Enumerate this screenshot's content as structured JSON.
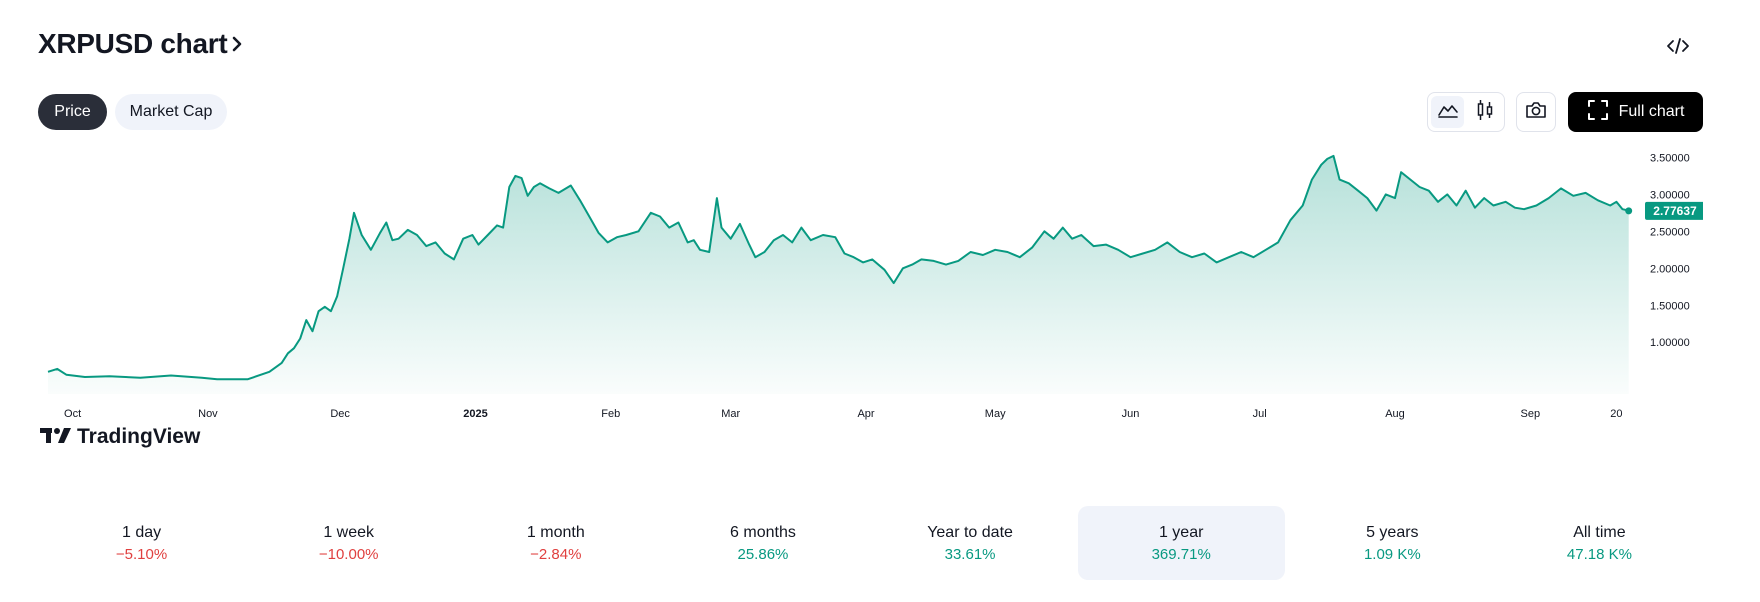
{
  "header": {
    "title": "XRPUSD chart",
    "chevron_icon": "chevron-right-icon",
    "embed_icon": "code-icon"
  },
  "tabs": [
    {
      "label": "Price",
      "active": true
    },
    {
      "label": "Market Cap",
      "active": false
    }
  ],
  "toolbar": {
    "chart_types": [
      {
        "icon": "area-chart-icon",
        "selected": true
      },
      {
        "icon": "candlestick-icon",
        "selected": false
      }
    ],
    "snapshot_icon": "camera-icon",
    "full_chart_label": "Full chart",
    "full_chart_icon": "fullscreen-icon"
  },
  "chart_data": {
    "type": "area",
    "symbol": "XRPUSD",
    "watermark": "TradingView",
    "line_color": "#089981",
    "fill_color": "#089981",
    "last_value_label": "2.77637",
    "last_value": 2.77637,
    "y_range": [
      0.3,
      3.6
    ],
    "y_ticks": [
      {
        "value": 3.5,
        "label": "3.50000"
      },
      {
        "value": 3.0,
        "label": "3.00000"
      },
      {
        "value": 2.5,
        "label": "2.50000"
      },
      {
        "value": 2.0,
        "label": "2.00000"
      },
      {
        "value": 1.5,
        "label": "1.50000"
      },
      {
        "value": 1.0,
        "label": "1.00000"
      }
    ],
    "x_range": [
      0,
      51.8
    ],
    "x_unit": "weeks since start (late Sep 2024)",
    "x_ticks": [
      {
        "x": 0.8,
        "label": "Oct",
        "bold": false
      },
      {
        "x": 5.2,
        "label": "Nov",
        "bold": false
      },
      {
        "x": 9.5,
        "label": "Dec",
        "bold": false
      },
      {
        "x": 13.9,
        "label": "2025",
        "bold": true
      },
      {
        "x": 18.3,
        "label": "Feb",
        "bold": false
      },
      {
        "x": 22.2,
        "label": "Mar",
        "bold": false
      },
      {
        "x": 26.6,
        "label": "Apr",
        "bold": false
      },
      {
        "x": 30.8,
        "label": "May",
        "bold": false
      },
      {
        "x": 35.2,
        "label": "Jun",
        "bold": false
      },
      {
        "x": 39.4,
        "label": "Jul",
        "bold": false
      },
      {
        "x": 43.8,
        "label": "Aug",
        "bold": false
      },
      {
        "x": 48.2,
        "label": "Sep",
        "bold": false
      },
      {
        "x": 51.0,
        "label": "20",
        "bold": false
      }
    ],
    "series": [
      {
        "name": "XRPUSD",
        "points": [
          [
            0,
            0.6
          ],
          [
            0.3,
            0.64
          ],
          [
            0.6,
            0.56
          ],
          [
            1.2,
            0.53
          ],
          [
            2,
            0.54
          ],
          [
            3,
            0.52
          ],
          [
            4,
            0.55
          ],
          [
            5,
            0.52
          ],
          [
            5.5,
            0.5
          ],
          [
            6.5,
            0.5
          ],
          [
            7.2,
            0.6
          ],
          [
            7.6,
            0.72
          ],
          [
            7.8,
            0.85
          ],
          [
            8.0,
            0.92
          ],
          [
            8.2,
            1.05
          ],
          [
            8.4,
            1.3
          ],
          [
            8.6,
            1.15
          ],
          [
            8.8,
            1.42
          ],
          [
            9.0,
            1.48
          ],
          [
            9.2,
            1.42
          ],
          [
            9.4,
            1.62
          ],
          [
            9.6,
            2.0
          ],
          [
            9.8,
            2.4
          ],
          [
            9.95,
            2.75
          ],
          [
            10.2,
            2.45
          ],
          [
            10.5,
            2.25
          ],
          [
            10.8,
            2.48
          ],
          [
            11.0,
            2.62
          ],
          [
            11.2,
            2.38
          ],
          [
            11.4,
            2.4
          ],
          [
            11.7,
            2.52
          ],
          [
            12.0,
            2.45
          ],
          [
            12.3,
            2.3
          ],
          [
            12.6,
            2.35
          ],
          [
            12.9,
            2.2
          ],
          [
            13.2,
            2.12
          ],
          [
            13.5,
            2.4
          ],
          [
            13.8,
            2.45
          ],
          [
            14.0,
            2.32
          ],
          [
            14.3,
            2.45
          ],
          [
            14.6,
            2.58
          ],
          [
            14.8,
            2.55
          ],
          [
            15.0,
            3.1
          ],
          [
            15.2,
            3.25
          ],
          [
            15.4,
            3.22
          ],
          [
            15.6,
            2.98
          ],
          [
            15.8,
            3.1
          ],
          [
            16.0,
            3.15
          ],
          [
            16.3,
            3.08
          ],
          [
            16.6,
            3.02
          ],
          [
            17.0,
            3.12
          ],
          [
            17.3,
            2.92
          ],
          [
            17.6,
            2.7
          ],
          [
            17.9,
            2.48
          ],
          [
            18.2,
            2.35
          ],
          [
            18.5,
            2.42
          ],
          [
            18.8,
            2.45
          ],
          [
            19.2,
            2.5
          ],
          [
            19.6,
            2.75
          ],
          [
            19.9,
            2.7
          ],
          [
            20.2,
            2.55
          ],
          [
            20.5,
            2.62
          ],
          [
            20.8,
            2.35
          ],
          [
            21.0,
            2.38
          ],
          [
            21.2,
            2.25
          ],
          [
            21.5,
            2.22
          ],
          [
            21.75,
            2.95
          ],
          [
            21.9,
            2.55
          ],
          [
            22.2,
            2.4
          ],
          [
            22.5,
            2.6
          ],
          [
            22.8,
            2.32
          ],
          [
            23.0,
            2.15
          ],
          [
            23.3,
            2.22
          ],
          [
            23.6,
            2.38
          ],
          [
            23.9,
            2.45
          ],
          [
            24.2,
            2.35
          ],
          [
            24.5,
            2.55
          ],
          [
            24.8,
            2.38
          ],
          [
            25.2,
            2.45
          ],
          [
            25.6,
            2.42
          ],
          [
            25.9,
            2.2
          ],
          [
            26.2,
            2.15
          ],
          [
            26.5,
            2.08
          ],
          [
            26.8,
            2.12
          ],
          [
            27.2,
            1.98
          ],
          [
            27.5,
            1.8
          ],
          [
            27.8,
            2.0
          ],
          [
            28.1,
            2.05
          ],
          [
            28.4,
            2.12
          ],
          [
            28.8,
            2.1
          ],
          [
            29.2,
            2.05
          ],
          [
            29.6,
            2.1
          ],
          [
            30.0,
            2.22
          ],
          [
            30.4,
            2.18
          ],
          [
            30.8,
            2.25
          ],
          [
            31.2,
            2.22
          ],
          [
            31.6,
            2.15
          ],
          [
            32.0,
            2.28
          ],
          [
            32.4,
            2.5
          ],
          [
            32.7,
            2.4
          ],
          [
            33.0,
            2.55
          ],
          [
            33.3,
            2.4
          ],
          [
            33.6,
            2.45
          ],
          [
            34.0,
            2.3
          ],
          [
            34.4,
            2.32
          ],
          [
            34.8,
            2.25
          ],
          [
            35.2,
            2.15
          ],
          [
            35.6,
            2.2
          ],
          [
            36.0,
            2.25
          ],
          [
            36.4,
            2.35
          ],
          [
            36.8,
            2.22
          ],
          [
            37.2,
            2.15
          ],
          [
            37.6,
            2.2
          ],
          [
            38.0,
            2.08
          ],
          [
            38.4,
            2.15
          ],
          [
            38.8,
            2.22
          ],
          [
            39.2,
            2.15
          ],
          [
            39.6,
            2.25
          ],
          [
            40.0,
            2.35
          ],
          [
            40.4,
            2.65
          ],
          [
            40.8,
            2.85
          ],
          [
            41.1,
            3.2
          ],
          [
            41.4,
            3.4
          ],
          [
            41.6,
            3.48
          ],
          [
            41.8,
            3.52
          ],
          [
            42.0,
            3.2
          ],
          [
            42.3,
            3.15
          ],
          [
            42.6,
            3.05
          ],
          [
            42.9,
            2.95
          ],
          [
            43.2,
            2.78
          ],
          [
            43.5,
            3.0
          ],
          [
            43.8,
            2.95
          ],
          [
            44.0,
            3.3
          ],
          [
            44.3,
            3.2
          ],
          [
            44.6,
            3.1
          ],
          [
            44.9,
            3.05
          ],
          [
            45.2,
            2.9
          ],
          [
            45.5,
            3.0
          ],
          [
            45.8,
            2.85
          ],
          [
            46.1,
            3.05
          ],
          [
            46.4,
            2.82
          ],
          [
            46.7,
            2.95
          ],
          [
            47.0,
            2.85
          ],
          [
            47.4,
            2.9
          ],
          [
            47.7,
            2.82
          ],
          [
            48.0,
            2.8
          ],
          [
            48.4,
            2.85
          ],
          [
            48.8,
            2.95
          ],
          [
            49.2,
            3.08
          ],
          [
            49.6,
            2.98
          ],
          [
            50.0,
            3.02
          ],
          [
            50.4,
            2.92
          ],
          [
            50.8,
            2.85
          ],
          [
            51.0,
            2.9
          ],
          [
            51.2,
            2.8
          ],
          [
            51.4,
            2.78
          ]
        ]
      }
    ]
  },
  "periods": [
    {
      "label": "1 day",
      "value": "−5.10%",
      "trend": "neg",
      "selected": false
    },
    {
      "label": "1 week",
      "value": "−10.00%",
      "trend": "neg",
      "selected": false
    },
    {
      "label": "1 month",
      "value": "−2.84%",
      "trend": "neg",
      "selected": false
    },
    {
      "label": "6 months",
      "value": "25.86%",
      "trend": "pos",
      "selected": false
    },
    {
      "label": "Year to date",
      "value": "33.61%",
      "trend": "pos",
      "selected": false
    },
    {
      "label": "1 year",
      "value": "369.71%",
      "trend": "pos",
      "selected": true
    },
    {
      "label": "5 years",
      "value": "1.09 K%",
      "trend": "pos",
      "selected": false
    },
    {
      "label": "All time",
      "value": "47.18 K%",
      "trend": "pos",
      "selected": false
    }
  ]
}
